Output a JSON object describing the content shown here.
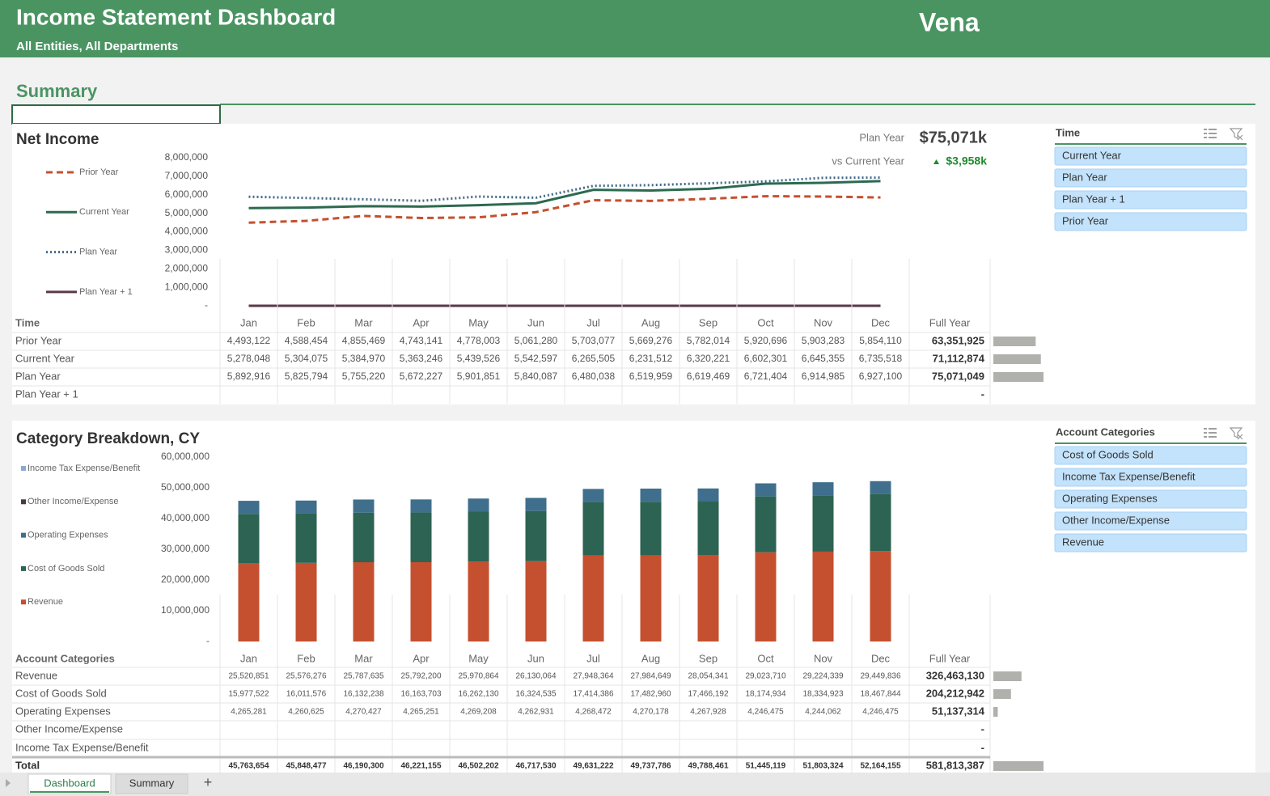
{
  "header": {
    "title": "Income Statement Dashboard",
    "subtitle": "All Entities, All Departments",
    "logo": "Vena"
  },
  "section_title": "Summary",
  "chart_data": [
    {
      "type": "line",
      "title": "Net Income",
      "categories": [
        "Jan",
        "Feb",
        "Mar",
        "Apr",
        "May",
        "Jun",
        "Jul",
        "Aug",
        "Sep",
        "Oct",
        "Nov",
        "Dec"
      ],
      "ylim": [
        0,
        8000000
      ],
      "yticks": [
        {
          "value": 0,
          "label": "-"
        },
        {
          "value": 1000000,
          "label": "1,000,000"
        },
        {
          "value": 2000000,
          "label": "2,000,000"
        },
        {
          "value": 3000000,
          "label": "3,000,000"
        },
        {
          "value": 4000000,
          "label": "4,000,000"
        },
        {
          "value": 5000000,
          "label": "5,000,000"
        },
        {
          "value": 6000000,
          "label": "6,000,000"
        },
        {
          "value": 7000000,
          "label": "7,000,000"
        },
        {
          "value": 8000000,
          "label": "8,000,000"
        }
      ],
      "table_title": "Time",
      "total_title": "Full Year",
      "kpi": {
        "label": "Plan Year",
        "value": "$75,071k",
        "compare_label": "vs Current Year",
        "compare_value": "$3,958k"
      },
      "series": [
        {
          "name": "Prior Year",
          "color": "#c4502f",
          "dash": "dashed",
          "values": [
            4493122,
            4588454,
            4855469,
            4743141,
            4778003,
            5061280,
            5703077,
            5669276,
            5782014,
            5920696,
            5903283,
            5854110
          ],
          "value_labels": [
            "4,493,122",
            "4,588,454",
            "4,855,469",
            "4,743,141",
            "4,778,003",
            "5,061,280",
            "5,703,077",
            "5,669,276",
            "5,782,014",
            "5,920,696",
            "5,903,283",
            "5,854,110"
          ],
          "full_year": {
            "value": 63351925,
            "label": "63,351,925"
          }
        },
        {
          "name": "Current Year",
          "color": "#2c6a50",
          "dash": "solid",
          "values": [
            5278048,
            5304075,
            5384970,
            5363246,
            5439526,
            5542597,
            6265505,
            6231512,
            6320221,
            6602301,
            6645355,
            6735518
          ],
          "value_labels": [
            "5,278,048",
            "5,304,075",
            "5,384,970",
            "5,363,246",
            "5,439,526",
            "5,542,597",
            "6,265,505",
            "6,231,512",
            "6,320,221",
            "6,602,301",
            "6,645,355",
            "6,735,518"
          ],
          "full_year": {
            "value": 71112874,
            "label": "71,112,874"
          }
        },
        {
          "name": "Plan Year",
          "color": "#41698a",
          "dash": "dotted",
          "values": [
            5892916,
            5825794,
            5755220,
            5672227,
            5901851,
            5840087,
            6480038,
            6519959,
            6619469,
            6721404,
            6914985,
            6927100
          ],
          "value_labels": [
            "5,892,916",
            "5,825,794",
            "5,755,220",
            "5,672,227",
            "5,901,851",
            "5,840,087",
            "6,480,038",
            "6,519,959",
            "6,619,469",
            "6,721,404",
            "6,914,985",
            "6,927,100"
          ],
          "full_year": {
            "value": 75071049,
            "label": "75,071,049"
          }
        },
        {
          "name": "Plan Year + 1",
          "color": "#5a3848",
          "dash": "solid",
          "values": [
            0,
            0,
            0,
            0,
            0,
            0,
            0,
            0,
            0,
            0,
            0,
            0
          ],
          "full_year": {
            "value": 0,
            "label": "-"
          }
        }
      ]
    },
    {
      "type": "bar",
      "stacked": true,
      "title": "Category Breakdown, CY",
      "categories": [
        "Jan",
        "Feb",
        "Mar",
        "Apr",
        "May",
        "Jun",
        "Jul",
        "Aug",
        "Sep",
        "Oct",
        "Nov",
        "Dec"
      ],
      "ylim": [
        0,
        60000000
      ],
      "yticks": [
        {
          "value": 0,
          "label": "-"
        },
        {
          "value": 10000000,
          "label": "10,000,000"
        },
        {
          "value": 20000000,
          "label": "20,000,000"
        },
        {
          "value": 30000000,
          "label": "30,000,000"
        },
        {
          "value": 40000000,
          "label": "40,000,000"
        },
        {
          "value": 50000000,
          "label": "50,000,000"
        },
        {
          "value": 60000000,
          "label": "60,000,000"
        }
      ],
      "table_title": "Account Categories",
      "total_title": "Full Year",
      "series": [
        {
          "name": "Revenue",
          "color": "#c4502f",
          "values": [
            25520851,
            25576276,
            25787635,
            25792200,
            25970864,
            26130064,
            27948364,
            27984649,
            28054341,
            29023710,
            29224339,
            29449836
          ],
          "value_labels": [
            "25,520,851",
            "25,576,276",
            "25,787,635",
            "25,792,200",
            "25,970,864",
            "26,130,064",
            "27,948,364",
            "27,984,649",
            "28,054,341",
            "29,023,710",
            "29,224,339",
            "29,449,836"
          ],
          "full_year": {
            "value": 326463130,
            "label": "326,463,130"
          }
        },
        {
          "name": "Cost of Goods Sold",
          "color": "#2c6352",
          "values": [
            15977522,
            16011576,
            16132238,
            16163703,
            16262130,
            16324535,
            17414386,
            17482960,
            17466192,
            18174934,
            18334923,
            18467844
          ],
          "value_labels": [
            "15,977,522",
            "16,011,576",
            "16,132,238",
            "16,163,703",
            "16,262,130",
            "16,324,535",
            "17,414,386",
            "17,482,960",
            "17,466,192",
            "18,174,934",
            "18,334,923",
            "18,467,844"
          ],
          "full_year": {
            "value": 204212942,
            "label": "204,212,942"
          }
        },
        {
          "name": "Operating Expenses",
          "color": "#3f6f8c",
          "values": [
            4265281,
            4260625,
            4270427,
            4265251,
            4269208,
            4262931,
            4268472,
            4270178,
            4267928,
            4246475,
            4244062,
            4246475
          ],
          "value_labels": [
            "4,265,281",
            "4,260,625",
            "4,270,427",
            "4,265,251",
            "4,269,208",
            "4,262,931",
            "4,268,472",
            "4,270,178",
            "4,267,928",
            "4,246,475",
            "4,244,062",
            "4,246,475"
          ],
          "full_year": {
            "value": 51137314,
            "label": "51,137,314"
          }
        },
        {
          "name": "Other Income/Expense",
          "color": "#4a3a3a",
          "values": [
            null,
            null,
            null,
            null,
            null,
            null,
            null,
            null,
            null,
            null,
            null,
            null
          ],
          "full_year": {
            "value": 0,
            "label": "-"
          }
        },
        {
          "name": "Income Tax Expense/Benefit",
          "color": "#8ea9cf",
          "values": [
            null,
            null,
            null,
            null,
            null,
            null,
            null,
            null,
            null,
            null,
            null,
            null
          ],
          "full_year": {
            "value": 0,
            "label": "-"
          }
        }
      ],
      "total_row": {
        "label": "Total",
        "values": [
          "45,763,654",
          "45,848,477",
          "46,190,300",
          "46,221,155",
          "46,502,202",
          "46,717,530",
          "49,631,222",
          "49,737,786",
          "49,788,461",
          "51,445,119",
          "51,803,324",
          "52,164,155"
        ],
        "full_year": {
          "value": 581813387,
          "label": "581,813,387"
        }
      }
    }
  ],
  "slicers": [
    {
      "title": "Time",
      "items": [
        "Current Year",
        "Plan Year",
        "Plan Year + 1",
        "Prior Year"
      ]
    },
    {
      "title": "Account Categories",
      "items": [
        "Cost of Goods Sold",
        "Income Tax Expense/Benefit",
        "Operating Expenses",
        "Other Income/Expense",
        "Revenue"
      ]
    }
  ],
  "tabs": [
    "Dashboard",
    "Summary",
    "+"
  ]
}
